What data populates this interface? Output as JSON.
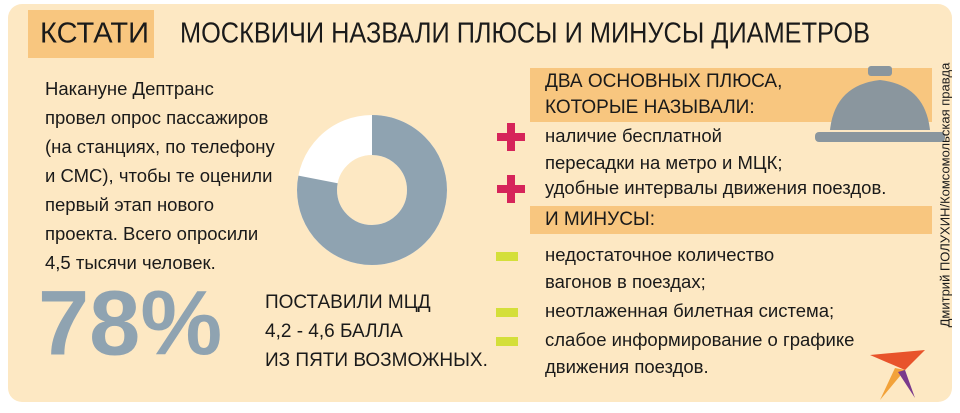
{
  "header": {
    "tag": "КСТАТИ",
    "title": "МОСКВИЧИ НАЗВАЛИ ПЛЮСЫ И МИНУСЫ ДИАМЕТРОВ"
  },
  "intro": {
    "lines": [
      "Накануне Дептранс",
      "провел опрос пассажиров",
      "(на станциях, по телефону",
      "и СМС), чтобы те оценили",
      "первый этап нового",
      "проекта. Всего опросили",
      "4,5 тысячи человек."
    ]
  },
  "stat": {
    "value": 78,
    "label": "78%",
    "caption": [
      "ПОСТАВИЛИ МЦД",
      "4,2 - 4,6 БАЛЛА",
      "ИЗ ПЯТИ ВОЗМОЖНЫХ."
    ]
  },
  "pros": {
    "heading": [
      "ДВА ОСНОВНЫХ ПЛЮСА,",
      "КОТОРЫЕ НАЗЫВАЛИ:"
    ],
    "items": [
      [
        "наличие бесплатной",
        "пересадки на метро и МЦК;"
      ],
      [
        "удобные интервалы движения поездов."
      ]
    ]
  },
  "cons": {
    "heading": "И МИНУСЫ:",
    "items": [
      [
        "недостаточное количество",
        "вагонов в поездах;"
      ],
      [
        "неотлаженная билетная система;"
      ],
      [
        "слабое информирование о графике",
        "движения поездов."
      ]
    ]
  },
  "credit": "Дмитрий ПОЛУХИН/Комсомольская правда"
}
